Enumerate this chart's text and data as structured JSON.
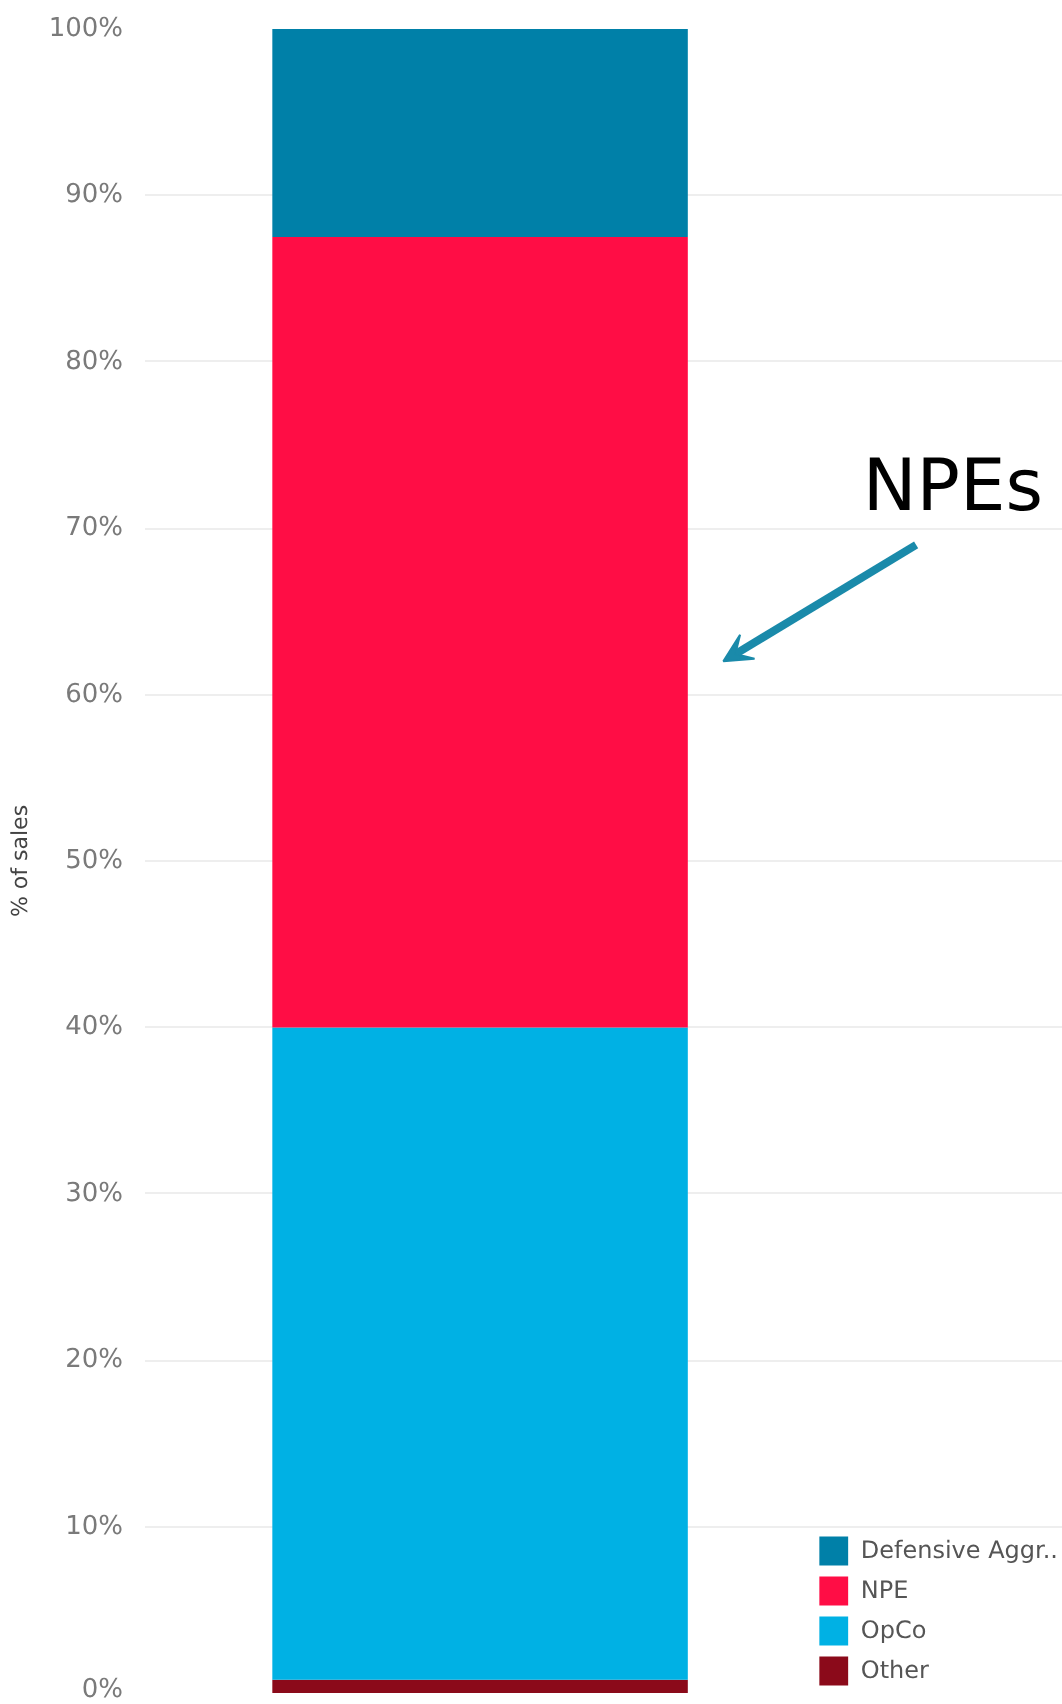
{
  "chart_data": {
    "type": "bar",
    "stacked": true,
    "ylabel": "% of sales",
    "categories": [
      null
    ],
    "series": [
      {
        "name": "Other",
        "color": "#8b0a1a",
        "values": [
          0.8
        ]
      },
      {
        "name": "OpCo",
        "color": "#00b1e4",
        "values": [
          39.2
        ]
      },
      {
        "name": "NPE",
        "color": "#ff0d45",
        "values": [
          47.5
        ]
      },
      {
        "name": "Defensive Aggr..",
        "color": "#0080a8",
        "values": [
          12.5
        ]
      }
    ],
    "ylim": [
      0,
      100
    ],
    "yticks": [
      {
        "value": 0,
        "label": "0%"
      },
      {
        "value": 10,
        "label": "10%"
      },
      {
        "value": 20,
        "label": "20%"
      },
      {
        "value": 30,
        "label": "30%"
      },
      {
        "value": 40,
        "label": "40%"
      },
      {
        "value": 50,
        "label": "50%"
      },
      {
        "value": 60,
        "label": "60%"
      },
      {
        "value": 70,
        "label": "70%"
      },
      {
        "value": 80,
        "label": "80%"
      },
      {
        "value": 90,
        "label": "90%"
      },
      {
        "value": 100,
        "label": "100%"
      }
    ],
    "grid": "y",
    "legend": "bottom right",
    "annotations": [
      "NPEs"
    ]
  }
}
